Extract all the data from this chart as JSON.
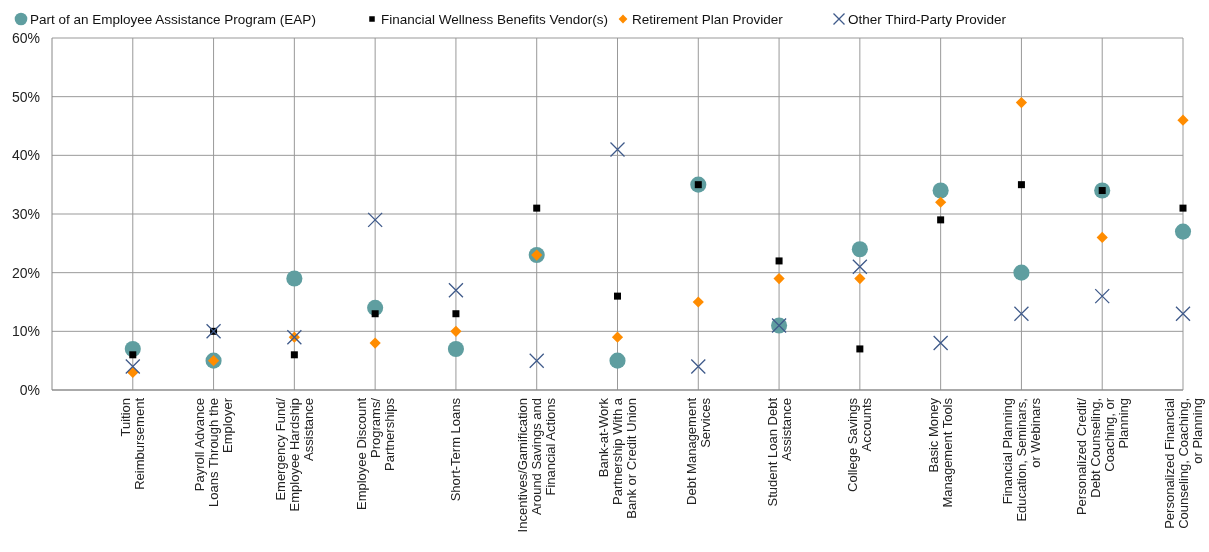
{
  "chart_data": {
    "type": "scatter",
    "categories": [
      "Tuition\nReimbursement",
      "Payroll Advance\nLoans Through the\nEmployer",
      "Emergency Fund/\nEmployee Hardship\nAssistance",
      "Employee Discount\nPrograms/\nPartnerships",
      "Short-Term Loans",
      "Incentives/Gamification\nAround Savings and\nFinancial Actions",
      "Bank-at-Work\nPartnership With a\nBank or Credit Union",
      "Debt Management\nServices",
      "Student Loan Debt\nAssistance",
      "College Savings\nAccounts",
      "Basic Money\nManagement Tools",
      "Financial Planning\nEducation, Seminars,\nor Webinars",
      "Personalized Credit/\nDebt Counseling,\nCoaching, or\nPlanning",
      "Personalized Financial\nCounseling, Coaching,\nor Planning"
    ],
    "series": [
      {
        "name": "Part of an Employee Assistance Program (EAP)",
        "color": "#5f9ea0",
        "marker": "circle",
        "values": [
          7,
          5,
          19,
          14,
          7,
          23,
          5,
          35,
          11,
          24,
          34,
          20,
          34,
          27
        ]
      },
      {
        "name": "Financial Wellness Benefits Vendor(s)",
        "color": "#000000",
        "marker": "square",
        "values": [
          6,
          10,
          6,
          13,
          13,
          31,
          16,
          35,
          22,
          7,
          29,
          35,
          34,
          31
        ]
      },
      {
        "name": "Retirement Plan Provider",
        "color": "#ff8c00",
        "marker": "diamond",
        "values": [
          3,
          5,
          9,
          8,
          10,
          23,
          9,
          15,
          19,
          19,
          32,
          49,
          26,
          46
        ]
      },
      {
        "name": "Other Third-Party Provider",
        "color": "#3f5a8a",
        "marker": "cross",
        "values": [
          4,
          10,
          9,
          29,
          17,
          5,
          41,
          4,
          11,
          21,
          8,
          13,
          16,
          13
        ]
      }
    ],
    "ylim": [
      0,
      60
    ],
    "yticks": [
      {
        "value": 0,
        "label": "0%"
      },
      {
        "value": 10,
        "label": "10%"
      },
      {
        "value": 20,
        "label": "20%"
      },
      {
        "value": 30,
        "label": "30%"
      },
      {
        "value": 40,
        "label": "40%"
      },
      {
        "value": 50,
        "label": "50%"
      },
      {
        "value": 60,
        "label": "60%"
      }
    ],
    "grid": true,
    "legend": "top"
  }
}
